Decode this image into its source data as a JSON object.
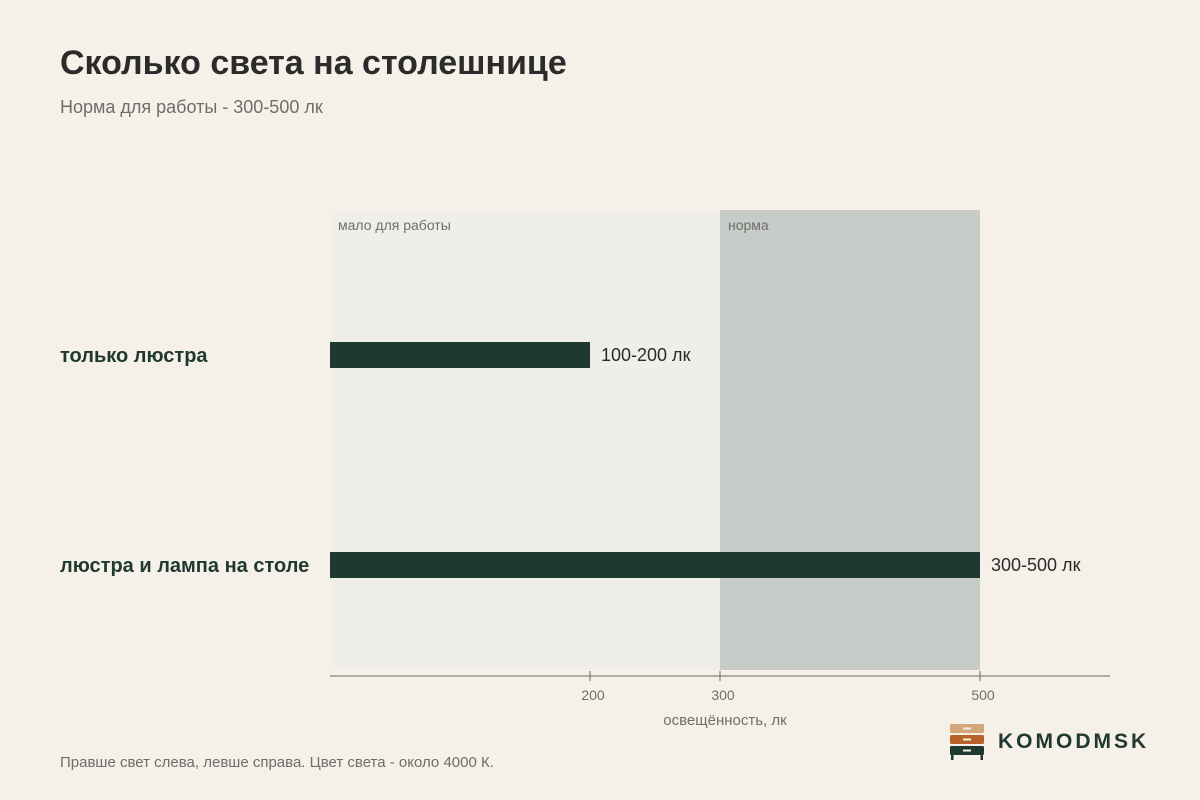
{
  "header": {
    "title": "Сколько света на столешнице",
    "subtitle": "Норма для работы - 300-500 лк"
  },
  "chart_data": {
    "type": "bar",
    "orientation": "horizontal",
    "categories": [
      "только люстра",
      "люстра и лампа на столе"
    ],
    "ranges": [
      [
        100,
        200
      ],
      [
        300,
        500
      ]
    ],
    "value_labels": [
      "100-200 лк",
      "300-500 лк"
    ],
    "xlabel": "освещённость, лк",
    "xlim": [
      0,
      600
    ],
    "xticks": [
      200,
      300,
      500
    ],
    "zones": [
      {
        "label": "мало для работы",
        "from": 0,
        "to": 300,
        "color": "#f0eee9"
      },
      {
        "label": "норма",
        "from": 300,
        "to": 500,
        "color": "#c7ccc9"
      }
    ],
    "bar_color": "#1f3830",
    "grid": false
  },
  "footer": {
    "note": "Правше свет слева, левше справа. Цвет света - около 4000 К."
  },
  "logo": {
    "text": "KOMODMSK",
    "colors": [
      "#d4a47b",
      "#b8622a",
      "#1f3830"
    ]
  }
}
